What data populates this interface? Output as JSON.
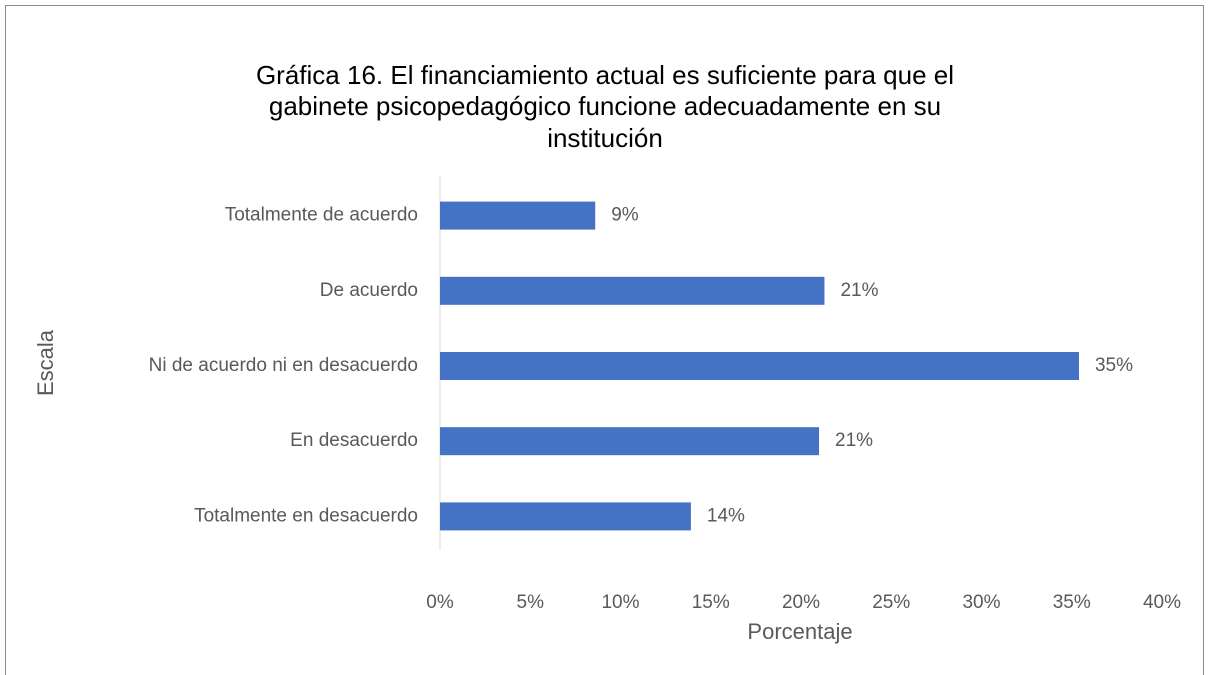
{
  "chart_data": {
    "type": "bar",
    "orientation": "horizontal",
    "title": [
      "Gráfica 16. El financiamiento actual es suficiente para que el",
      "gabinete psicopedagógico funcione adecuadamente en su",
      "institución"
    ],
    "categories": [
      "Totalmente de acuerdo",
      "De acuerdo",
      "Ni de acuerdo ni en desacuerdo",
      "En desacuerdo",
      "Totalmente en desacuerdo"
    ],
    "values": [
      8.6,
      21.3,
      35.4,
      21.0,
      13.9
    ],
    "value_labels": [
      "9%",
      "21%",
      "35%",
      "21%",
      "14%"
    ],
    "color": "#4472c4",
    "xlim": [
      0,
      40
    ],
    "xticks": [
      {
        "value": 0,
        "label": "0%"
      },
      {
        "value": 5,
        "label": "5%"
      },
      {
        "value": 10,
        "label": "10%"
      },
      {
        "value": 15,
        "label": "15%"
      },
      {
        "value": 20,
        "label": "20%"
      },
      {
        "value": 25,
        "label": "25%"
      },
      {
        "value": 30,
        "label": "30%"
      },
      {
        "value": 35,
        "label": "35%"
      },
      {
        "value": 40,
        "label": "40%"
      }
    ],
    "x_label": "Porcentaje",
    "y_label": "Escala",
    "grid": false
  }
}
